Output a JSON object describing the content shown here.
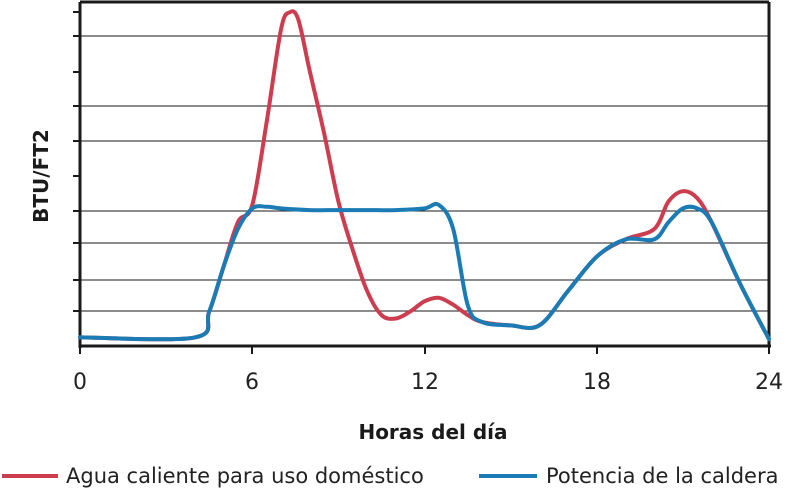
{
  "chart_data": {
    "type": "line",
    "xlabel": "Horas del día",
    "ylabel": "BTU/FT2",
    "xlim": [
      0,
      24
    ],
    "ylim": [
      0,
      10
    ],
    "x_ticks": [
      "0",
      "6",
      "12",
      "18",
      "24"
    ],
    "y_ticks": [],
    "grid": "horizontal",
    "legend_position": "bottom",
    "series": [
      {
        "name": "Agua caliente para uso doméstico",
        "color": "#cc3d4f",
        "x": [
          0,
          4,
          4.5,
          5,
          5.5,
          6,
          6.5,
          7,
          7.3,
          7.6,
          8,
          8.5,
          9,
          9.5,
          10,
          10.5,
          11,
          11.5,
          12,
          12.5,
          13,
          13.5,
          14,
          15,
          16,
          17,
          18,
          19,
          20,
          20.5,
          21,
          21.5,
          22,
          23,
          24
        ],
        "y": [
          0.25,
          0.25,
          1.0,
          2.3,
          3.6,
          4.1,
          6.5,
          9.2,
          9.7,
          9.5,
          8.0,
          6.2,
          4.2,
          2.8,
          1.6,
          0.9,
          0.8,
          1.0,
          1.3,
          1.4,
          1.2,
          0.9,
          0.7,
          0.6,
          0.6,
          1.6,
          2.6,
          3.1,
          3.4,
          4.2,
          4.5,
          4.3,
          3.6,
          1.8,
          0.2
        ]
      },
      {
        "name": "Potencia de la caldera",
        "color": "#1a7bb5",
        "x": [
          0,
          4,
          4.5,
          5,
          5.5,
          6,
          6.5,
          7,
          8,
          9,
          10,
          11,
          12,
          12.5,
          13,
          13.5,
          14,
          15,
          16,
          17,
          18,
          19,
          20,
          20.5,
          21,
          21.5,
          22,
          23,
          24
        ],
        "y": [
          0.25,
          0.25,
          1.0,
          2.3,
          3.4,
          4.0,
          4.05,
          4.0,
          3.95,
          3.95,
          3.95,
          3.95,
          4.0,
          4.1,
          3.4,
          1.2,
          0.7,
          0.6,
          0.6,
          1.6,
          2.6,
          3.1,
          3.1,
          3.6,
          4.0,
          4.0,
          3.6,
          1.8,
          0.2
        ]
      }
    ]
  }
}
